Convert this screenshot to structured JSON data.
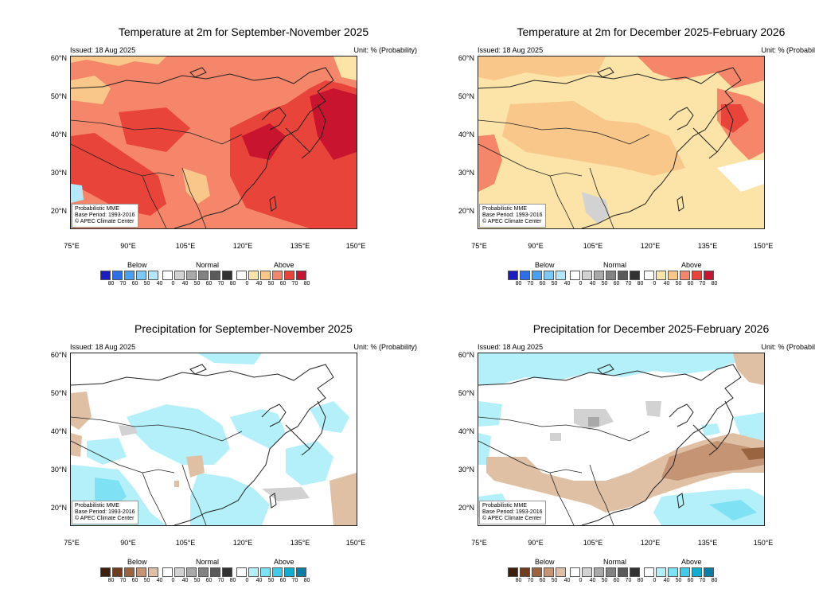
{
  "common": {
    "issued": "Issued: 18 Aug 2025",
    "unit": "Unit: % (Probability)",
    "lat_labels": [
      "60°N",
      "50°N",
      "40°N",
      "30°N",
      "20°N"
    ],
    "lon_labels": [
      "75°E",
      "90°E",
      "105°E",
      "120°E",
      "135°E",
      "150°E"
    ],
    "info": [
      "Probabilistic MME",
      "Base Period: 1993-2016",
      "© APEC Climate Center"
    ],
    "legend_headers": [
      "Below",
      "Normal",
      "Above"
    ],
    "legend_numbers": [
      "80",
      "70",
      "60",
      "50",
      "40",
      "0",
      "40",
      "50",
      "60",
      "70",
      "80",
      "0",
      "40",
      "50",
      "60",
      "70",
      "80"
    ]
  },
  "panels": [
    {
      "title": "Temperature at 2m for September-November 2025",
      "variable": "temperature",
      "dominant_category": "Above",
      "colors_below": [
        "#1b1bc8",
        "#2e6ee6",
        "#4aa0f0",
        "#7cc8f8",
        "#b4e8fc"
      ],
      "colors_normal": [
        "#ffffff",
        "#d2d2d2",
        "#a9a9a9",
        "#828282",
        "#5a5a5a",
        "#323232"
      ],
      "colors_above": [
        "#ffffff",
        "#fce3a8",
        "#f9c78a",
        "#f5866a",
        "#e8443a",
        "#c8142e"
      ]
    },
    {
      "title": "Temperature at 2m for December 2025-February 2026",
      "variable": "temperature",
      "dominant_category": "Above",
      "colors_below": [
        "#1b1bc8",
        "#2e6ee6",
        "#4aa0f0",
        "#7cc8f8",
        "#b4e8fc"
      ],
      "colors_normal": [
        "#ffffff",
        "#d2d2d2",
        "#a9a9a9",
        "#828282",
        "#5a5a5a",
        "#323232"
      ],
      "colors_above": [
        "#ffffff",
        "#fce3a8",
        "#f9c78a",
        "#f5866a",
        "#e8443a",
        "#c8142e"
      ]
    },
    {
      "title": "Precipitation for September-November 2025",
      "variable": "precipitation",
      "dominant_category": "Above",
      "colors_below": [
        "#3c1e0a",
        "#6e3c1e",
        "#9a6440",
        "#c49474",
        "#e0c0a4"
      ],
      "colors_normal": [
        "#ffffff",
        "#d2d2d2",
        "#a9a9a9",
        "#828282",
        "#5a5a5a",
        "#323232"
      ],
      "colors_above": [
        "#ffffff",
        "#b4f0fa",
        "#7ee2f4",
        "#40cce8",
        "#14acd0",
        "#0a7ea6"
      ]
    },
    {
      "title": "Precipitation for December 2025-February 2026",
      "variable": "precipitation",
      "dominant_category": "Below",
      "colors_below": [
        "#3c1e0a",
        "#6e3c1e",
        "#9a6440",
        "#c49474",
        "#e0c0a4"
      ],
      "colors_normal": [
        "#ffffff",
        "#d2d2d2",
        "#a9a9a9",
        "#828282",
        "#5a5a5a",
        "#323232"
      ],
      "colors_above": [
        "#ffffff",
        "#b4f0fa",
        "#7ee2f4",
        "#40cce8",
        "#14acd0",
        "#0a7ea6"
      ]
    }
  ]
}
